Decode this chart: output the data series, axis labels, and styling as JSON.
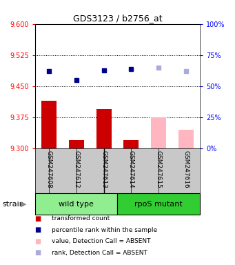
{
  "title": "GDS3123 / b2756_at",
  "samples": [
    "GSM247608",
    "GSM247612",
    "GSM247613",
    "GSM247614",
    "GSM247615",
    "GSM247616"
  ],
  "bar_values": [
    9.415,
    9.32,
    9.395,
    9.32,
    9.375,
    9.345
  ],
  "bar_absent": [
    false,
    false,
    false,
    false,
    true,
    true
  ],
  "dot_values": [
    62,
    55,
    62.5,
    63.5,
    65,
    62
  ],
  "dot_absent": [
    false,
    false,
    false,
    false,
    true,
    true
  ],
  "ylim_left": [
    9.3,
    9.6
  ],
  "ylim_right": [
    0,
    100
  ],
  "yticks_left": [
    9.3,
    9.375,
    9.45,
    9.525,
    9.6
  ],
  "yticks_right": [
    0,
    25,
    50,
    75,
    100
  ],
  "hlines": [
    9.375,
    9.45,
    9.525
  ],
  "wt_color": "#90EE90",
  "rpos_color": "#32CD32",
  "bar_color_present": "#CC0000",
  "bar_color_absent": "#FFB6C1",
  "dot_color_present": "#00008B",
  "dot_color_absent": "#AAAADD",
  "gray_color": "#C8C8C8",
  "bar_width": 0.55,
  "legend_labels": [
    "transformed count",
    "percentile rank within the sample",
    "value, Detection Call = ABSENT",
    "rank, Detection Call = ABSENT"
  ],
  "legend_colors": [
    "#CC0000",
    "#00008B",
    "#FFB6C1",
    "#AAAADD"
  ]
}
